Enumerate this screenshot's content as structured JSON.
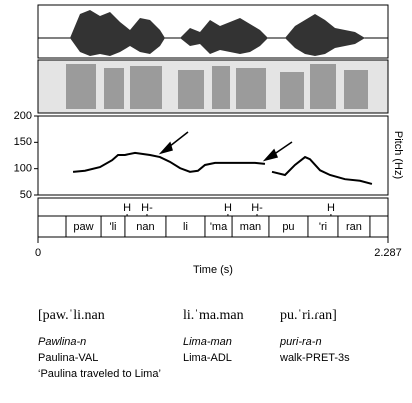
{
  "chart_data": {
    "type": "line",
    "x_label": "Time (s)",
    "y_label": "Pitch (Hz)",
    "xlim": [
      0,
      2.287
    ],
    "xticks": [
      0,
      2.287
    ],
    "ylim": [
      50,
      200
    ],
    "yticks": [
      50,
      100,
      150,
      200
    ],
    "color": "#000000",
    "x": [
      0.229,
      0.307,
      0.405,
      0.484,
      0.523,
      0.568,
      0.634,
      0.732,
      0.797,
      0.862,
      0.928,
      0.993,
      1.045,
      1.091,
      1.157,
      1.222,
      1.32,
      1.418,
      1.483,
      1.5,
      1.529,
      1.614,
      1.679,
      1.745,
      1.777,
      1.843,
      1.908,
      2.006,
      2.104,
      2.182
    ],
    "values": [
      94,
      96,
      103,
      116,
      126,
      126,
      130,
      126,
      122,
      113,
      101,
      94,
      96,
      107,
      111,
      111,
      111,
      111,
      109,
      null,
      94,
      88,
      107,
      122,
      118,
      97,
      88,
      80,
      77,
      71
    ],
    "tone_tier": {
      "labels": [
        "H",
        "H-",
        "H",
        "H-",
        "H"
      ],
      "x": [
        0.582,
        0.712,
        1.241,
        1.431,
        1.914
      ]
    },
    "syllable_tier": {
      "labels": [
        "paw",
        "'li",
        "nan",
        "li",
        "'ma",
        "man",
        "pu",
        "'ri",
        "ran"
      ],
      "boundaries": [
        0.183,
        0.412,
        0.568,
        0.836,
        1.091,
        1.268,
        1.509,
        1.764,
        1.96,
        2.169
      ]
    }
  },
  "gloss": {
    "ipa": [
      "[paw.ˈli.nan",
      "li.ˈma.man",
      "pu.ˈri.ɾan]"
    ],
    "words": [
      "Pawlina-n",
      "Lima-man",
      "puri-ra-n"
    ],
    "glosses": [
      "Paulina-VAL",
      "Lima-ADL",
      "walk-PRET-3s"
    ],
    "translation": "‘Paulina traveled to Lima’"
  }
}
